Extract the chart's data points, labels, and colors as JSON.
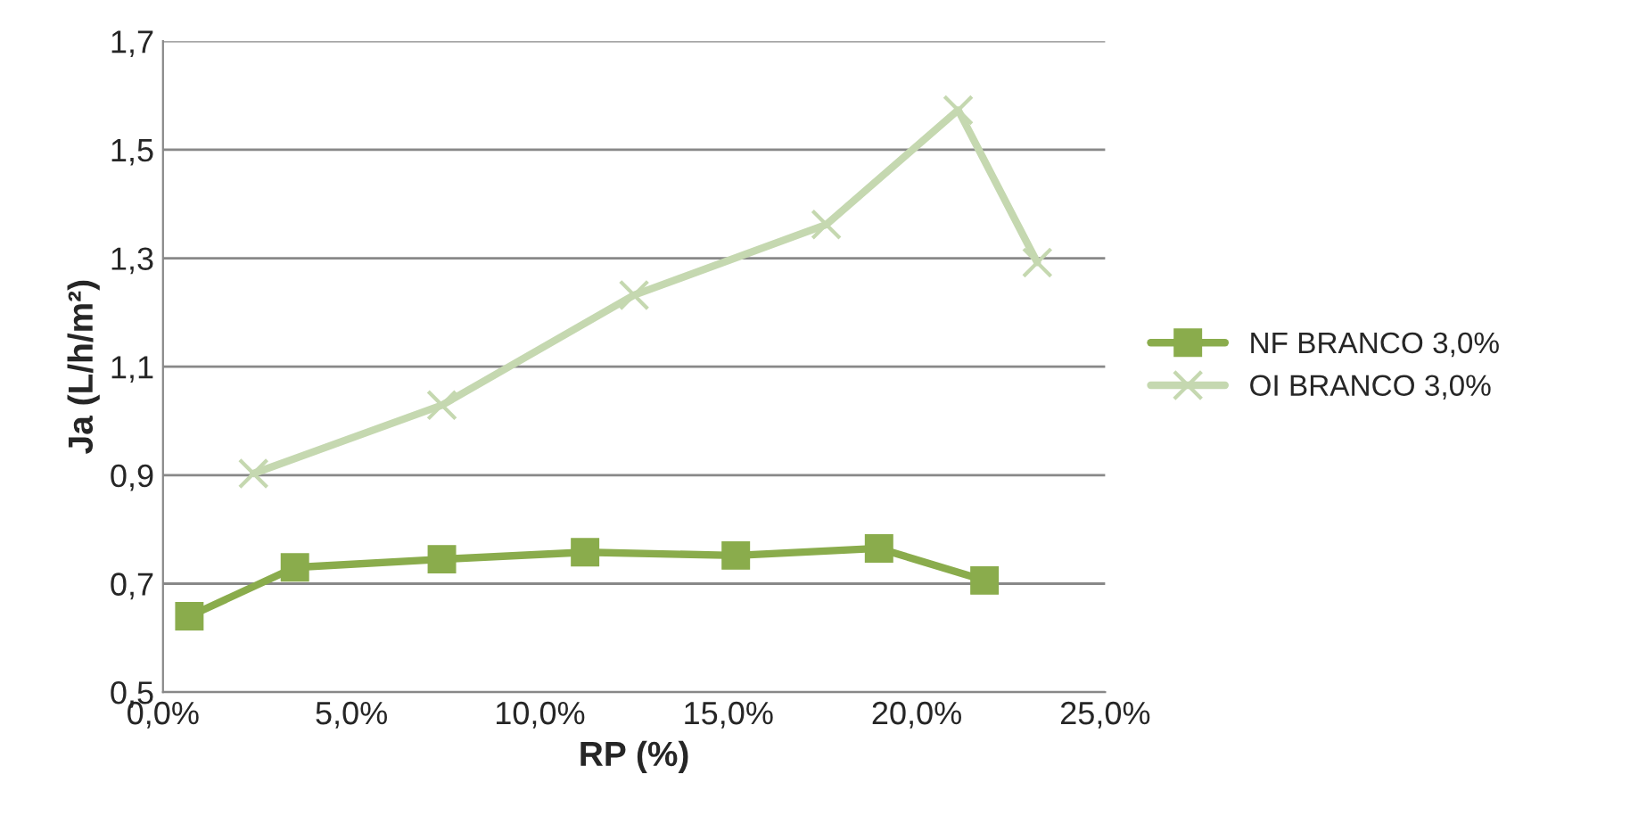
{
  "chart_data": {
    "type": "line",
    "xlabel": "RP (%)",
    "ylabel": "Ja (L/h/m²)",
    "xlim": [
      0,
      25
    ],
    "xticks": [
      {
        "value": 0,
        "label": "0,0%"
      },
      {
        "value": 5,
        "label": "5,0%"
      },
      {
        "value": 10,
        "label": "10,0%"
      },
      {
        "value": 15,
        "label": "15,0%"
      },
      {
        "value": 20,
        "label": "20,0%"
      },
      {
        "value": 25,
        "label": "25,0%"
      }
    ],
    "ylim": [
      0.5,
      1.7
    ],
    "yticks": [
      {
        "value": 0.5,
        "label": "0,5"
      },
      {
        "value": 0.7,
        "label": "0,7"
      },
      {
        "value": 0.9,
        "label": "0,9"
      },
      {
        "value": 1.1,
        "label": "1,1"
      },
      {
        "value": 1.3,
        "label": "1,3"
      },
      {
        "value": 1.5,
        "label": "1,5"
      },
      {
        "value": 1.7,
        "label": "1,7"
      }
    ],
    "grid": "y",
    "legend": "right",
    "series": [
      {
        "name": "NF BRANCO 3,0%",
        "color": "#8aac4c",
        "marker": "square",
        "x": [
          0.7,
          3.5,
          7.4,
          11.2,
          15.2,
          19.0,
          21.8
        ],
        "values": [
          0.64,
          0.73,
          0.745,
          0.758,
          0.752,
          0.765,
          0.706
        ]
      },
      {
        "name": "OI BRANCO 3,0%",
        "color": "#c5d8b0",
        "marker": "cross",
        "x": [
          2.4,
          7.4,
          12.5,
          17.6,
          21.1,
          23.2
        ],
        "values": [
          0.903,
          1.029,
          1.232,
          1.362,
          1.573,
          1.292
        ]
      }
    ]
  }
}
